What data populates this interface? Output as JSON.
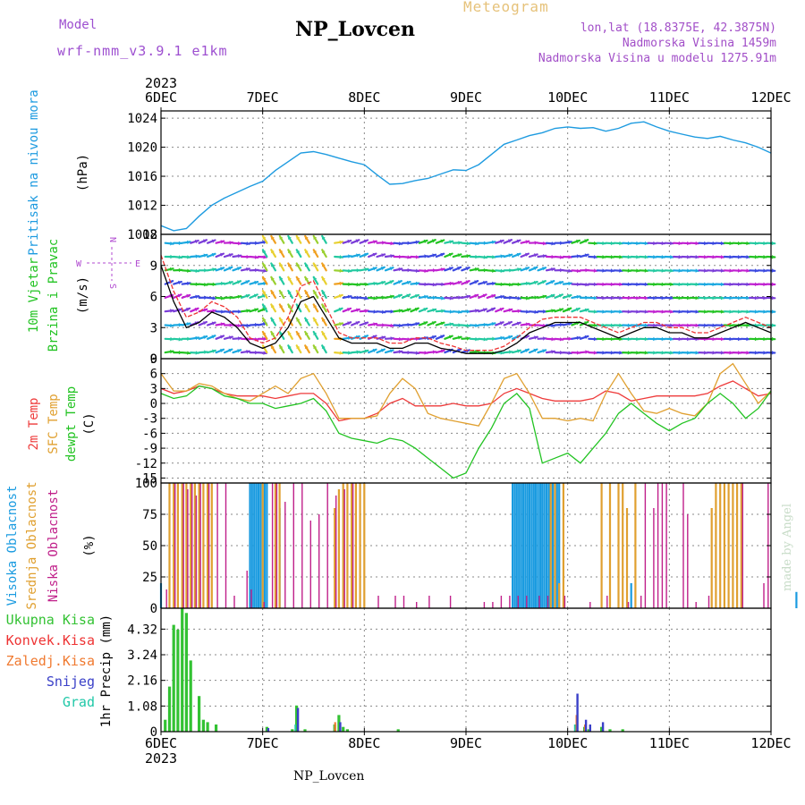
{
  "header": {
    "model_label": "Model",
    "model_value": "wrf-nmm_v3.9.1 e1km",
    "title": "NP_Lovcen",
    "meteogram": "Meteogram",
    "lonlat": "lon,lat (18.8375E, 42.3875N)",
    "altitude": "Nadmorska Visina 1459m",
    "altitude_model": "Nadmorska Visina u modelu 1275.91m"
  },
  "footer": {
    "station": "NP_Lovcen"
  },
  "watermark": "made by Angel",
  "colors": {
    "pressure": "#1e9be0",
    "temp2m": "#ee3b3b",
    "sfc": "#e0a030",
    "dew": "#22c322",
    "visoka": "#1a9be0",
    "srednja": "#e0a030",
    "niska": "#c0208a",
    "rain_total": "#33c233",
    "rain_conv": "#ee3333",
    "rain_frz": "#f07a30",
    "snow": "#3a40c8",
    "graupel": "#20c8a8",
    "wind_speed": "#000000",
    "wind_gust": "#ee3333"
  },
  "chart_data": [
    {
      "type": "line",
      "id": "pressure",
      "ylabel_lines": [
        "Pritisak na nivou mora",
        "(hPa)"
      ],
      "ylim": [
        1008,
        1025
      ],
      "yticks": [
        1008,
        1012,
        1016,
        1020,
        1024
      ],
      "x": [
        0,
        3,
        6,
        9,
        12,
        15,
        18,
        21,
        24,
        27,
        30,
        33,
        36,
        39,
        42,
        45,
        48,
        51,
        54,
        57,
        60,
        63,
        66,
        69,
        72,
        75,
        78,
        81,
        84,
        87,
        90,
        93,
        96,
        99,
        102,
        105,
        108,
        111,
        114,
        117,
        120,
        123,
        126,
        129,
        132,
        135,
        138,
        141,
        144
      ],
      "values": [
        1009.2,
        1008.5,
        1008.8,
        1010.5,
        1012.0,
        1013.0,
        1013.8,
        1014.6,
        1015.3,
        1016.8,
        1018.0,
        1019.2,
        1019.4,
        1019.0,
        1018.5,
        1018.0,
        1017.6,
        1016.2,
        1014.9,
        1015.0,
        1015.4,
        1015.7,
        1016.3,
        1016.9,
        1016.8,
        1017.6,
        1019.0,
        1020.4,
        1021.0,
        1021.6,
        1022.0,
        1022.6,
        1022.8,
        1022.6,
        1022.7,
        1022.2,
        1022.6,
        1023.3,
        1023.5,
        1022.8,
        1022.2,
        1021.8,
        1021.4,
        1021.2,
        1021.5,
        1021.0,
        1020.6,
        1020.0,
        1019.2
      ]
    },
    {
      "type": "line",
      "id": "wind",
      "ylabel_lines": [
        "10m Vjetar",
        "Brzina i Pravac",
        "(m/s)"
      ],
      "compass": {
        "n": "N",
        "s": "S",
        "e": "E",
        "w": "W"
      },
      "ylim": [
        0,
        12
      ],
      "yticks": [
        0,
        3,
        6,
        9,
        12
      ],
      "x": [
        0,
        3,
        6,
        9,
        12,
        15,
        18,
        21,
        24,
        27,
        30,
        33,
        36,
        39,
        42,
        45,
        48,
        51,
        54,
        57,
        60,
        63,
        66,
        69,
        72,
        75,
        78,
        81,
        84,
        87,
        90,
        93,
        96,
        99,
        102,
        105,
        108,
        111,
        114,
        117,
        120,
        123,
        126,
        129,
        132,
        135,
        138,
        141,
        144
      ],
      "series": [
        {
          "name": "speed",
          "values": [
            9.0,
            5.5,
            3.0,
            3.5,
            4.5,
            4.0,
            3.0,
            1.5,
            1.0,
            1.5,
            3.0,
            5.5,
            6.0,
            4.0,
            2.0,
            1.5,
            1.5,
            1.5,
            1.0,
            1.0,
            1.5,
            1.5,
            1.0,
            0.8,
            0.5,
            0.5,
            0.5,
            0.8,
            1.5,
            2.5,
            3.0,
            3.5,
            3.5,
            3.5,
            3.0,
            2.5,
            2.0,
            2.5,
            3.0,
            3.0,
            2.5,
            2.5,
            2.0,
            2.0,
            2.5,
            3.0,
            3.5,
            3.0,
            2.5
          ]
        },
        {
          "name": "gust",
          "values": [
            10.0,
            6.5,
            4.0,
            4.5,
            5.5,
            5.0,
            4.0,
            2.0,
            1.5,
            2.0,
            4.0,
            7.0,
            7.5,
            5.0,
            2.5,
            2.0,
            2.0,
            2.0,
            1.5,
            1.5,
            2.0,
            2.0,
            1.5,
            1.2,
            0.8,
            0.8,
            0.8,
            1.2,
            2.0,
            3.0,
            3.8,
            4.0,
            4.0,
            4.0,
            3.5,
            3.0,
            2.5,
            3.0,
            3.5,
            3.5,
            3.0,
            3.0,
            2.5,
            2.5,
            3.0,
            3.5,
            4.0,
            3.5,
            3.0
          ]
        }
      ]
    },
    {
      "type": "line",
      "id": "temperature",
      "ylabel_lines": [
        "2m Temp",
        "SFC Temp",
        "dewpt Temp",
        "(C)"
      ],
      "ylim": [
        -16,
        9
      ],
      "yticks": [
        -15,
        -12,
        -9,
        -6,
        -3,
        0,
        3,
        6,
        9
      ],
      "x": [
        0,
        3,
        6,
        9,
        12,
        15,
        18,
        21,
        24,
        27,
        30,
        33,
        36,
        39,
        42,
        45,
        48,
        51,
        54,
        57,
        60,
        63,
        66,
        69,
        72,
        75,
        78,
        81,
        84,
        87,
        90,
        93,
        96,
        99,
        102,
        105,
        108,
        111,
        114,
        117,
        120,
        123,
        126,
        129,
        132,
        135,
        138,
        141,
        144
      ],
      "series": [
        {
          "name": "2m Temp",
          "values": [
            3.0,
            2.0,
            2.5,
            3.5,
            3.0,
            2.0,
            1.5,
            1.5,
            1.5,
            1.0,
            1.5,
            2.0,
            2.0,
            0.0,
            -3.5,
            -3.0,
            -3.0,
            -2.0,
            0.0,
            1.0,
            -0.5,
            -0.5,
            -0.5,
            0.0,
            -0.5,
            -0.5,
            0.0,
            2.0,
            3.0,
            2.0,
            1.0,
            0.5,
            0.5,
            0.5,
            1.0,
            2.5,
            2.0,
            0.5,
            1.0,
            1.5,
            1.5,
            1.5,
            1.5,
            2.0,
            3.5,
            4.5,
            3.0,
            1.5,
            2.0
          ]
        },
        {
          "name": "SFC Temp",
          "values": [
            6.0,
            2.5,
            2.5,
            4.0,
            3.5,
            2.0,
            1.0,
            0.5,
            2.0,
            3.5,
            2.0,
            5.0,
            6.0,
            2.0,
            -3.0,
            -3.0,
            -3.0,
            -2.5,
            2.0,
            5.0,
            3.0,
            -2.0,
            -3.0,
            -3.5,
            -4.0,
            -4.5,
            0.0,
            5.0,
            6.0,
            2.0,
            -3.0,
            -3.0,
            -3.5,
            -3.0,
            -3.5,
            2.0,
            6.0,
            2.0,
            -1.5,
            -2.0,
            -1.0,
            -2.0,
            -2.5,
            0.0,
            6.0,
            8.0,
            4.0,
            0.0,
            2.5
          ]
        },
        {
          "name": "dewpt Temp",
          "values": [
            2.0,
            1.0,
            1.5,
            3.5,
            3.0,
            1.5,
            1.0,
            0.0,
            0.0,
            -1.0,
            -0.5,
            0.0,
            1.0,
            -1.5,
            -6.0,
            -7.0,
            -7.5,
            -8.0,
            -7.0,
            -7.5,
            -9.0,
            -11.0,
            -13.0,
            -15.0,
            -14.0,
            -9.0,
            -5.0,
            0.0,
            2.0,
            -1.0,
            -12.0,
            -11.0,
            -10.0,
            -12.0,
            -9.0,
            -6.0,
            -2.0,
            0.0,
            -2.0,
            -4.0,
            -5.5,
            -4.0,
            -3.0,
            0.0,
            2.0,
            0.0,
            -3.0,
            -1.0,
            2.5
          ]
        }
      ]
    },
    {
      "type": "bar",
      "id": "cloud",
      "ylabel_lines": [
        "Visoka Oblacnost",
        "Srednja Oblacnost",
        "Niska Oblacnost",
        "(%)"
      ],
      "ylim": [
        0,
        100
      ],
      "yticks": [
        0,
        25,
        50,
        75,
        100
      ],
      "series": [
        {
          "name": "Visoka Oblacnost",
          "x": [
            0,
            21,
            21.5,
            22,
            22.5,
            23,
            23.5,
            24,
            24.5,
            25,
            28,
            83,
            83.5,
            84,
            84.5,
            85,
            85.5,
            86,
            86.5,
            87,
            87.5,
            88,
            88.5,
            89,
            89.5,
            90,
            90.5,
            91,
            91.5,
            92,
            92.5,
            93,
            93.5,
            94,
            111,
            150
          ],
          "values": [
            20,
            100,
            100,
            100,
            100,
            100,
            100,
            100,
            100,
            100,
            80,
            100,
            100,
            100,
            100,
            100,
            100,
            100,
            100,
            100,
            100,
            100,
            100,
            100,
            100,
            100,
            100,
            100,
            100,
            100,
            100,
            100,
            100,
            100,
            20,
            13
          ]
        },
        {
          "name": "Srednja Oblacnost",
          "x": [
            2,
            3,
            4,
            5,
            6,
            7,
            8,
            9,
            10,
            11,
            12,
            24,
            27,
            28,
            41,
            42,
            43,
            44,
            45,
            46,
            47,
            48,
            92,
            93,
            94,
            95,
            104,
            106,
            108,
            109,
            110,
            112,
            130,
            131,
            132,
            133,
            134,
            135,
            136,
            137
          ],
          "values": [
            100,
            100,
            100,
            100,
            100,
            100,
            100,
            100,
            100,
            100,
            100,
            100,
            100,
            100,
            80,
            95,
            100,
            100,
            100,
            100,
            100,
            100,
            100,
            100,
            20,
            100,
            100,
            100,
            100,
            100,
            80,
            100,
            80,
            100,
            100,
            100,
            100,
            100,
            100,
            100
          ]
        },
        {
          "name": "Niska Oblacnost",
          "x": [
            1,
            3,
            5,
            6,
            7,
            8,
            9,
            11,
            13,
            15,
            17,
            20,
            21,
            24,
            26,
            27,
            29,
            31,
            33,
            35,
            37,
            39,
            41,
            43,
            45,
            51,
            55,
            57,
            60,
            63,
            68,
            76,
            78,
            80,
            82,
            84,
            86,
            89,
            91,
            95,
            101,
            105,
            110,
            113,
            114,
            116,
            117,
            118,
            119,
            123,
            124,
            126,
            129,
            137,
            142,
            143
          ],
          "values": [
            15,
            100,
            100,
            95,
            100,
            90,
            100,
            100,
            100,
            100,
            10,
            30,
            15,
            5,
            100,
            100,
            85,
            100,
            100,
            70,
            75,
            100,
            90,
            95,
            100,
            10,
            10,
            10,
            5,
            10,
            10,
            5,
            5,
            10,
            10,
            10,
            10,
            10,
            10,
            10,
            5,
            10,
            5,
            10,
            100,
            80,
            100,
            100,
            100,
            100,
            75,
            5,
            10,
            100,
            20,
            100
          ]
        }
      ]
    },
    {
      "type": "bar",
      "id": "precip",
      "ylabel_lines": [
        "1hr Precip (mm)"
      ],
      "legend": [
        "Ukupna Kisa",
        "Konvek.Kisa",
        "Zaledj.Kisa",
        "Snijeg",
        "Grad"
      ],
      "ylim": [
        0,
        5.2
      ],
      "yticks": [
        0,
        1.08,
        2.16,
        3.24,
        4.32
      ],
      "x": [
        1,
        2,
        3,
        4,
        5,
        6,
        7,
        9,
        10,
        11,
        13,
        25,
        31,
        32,
        34,
        41,
        42,
        43,
        44,
        56,
        98,
        100,
        101,
        104,
        106,
        109
      ],
      "series": [
        {
          "name": "Ukupna Kisa",
          "values": [
            0.5,
            1.9,
            4.5,
            4.3,
            5.2,
            5.0,
            3.0,
            1.5,
            0.5,
            0.4,
            0.3,
            0.2,
            0.1,
            1.1,
            0.1,
            0.3,
            0.7,
            0.2,
            0.1,
            0.1,
            0.3,
            0.2,
            0.1,
            0.2,
            0.1,
            0.1
          ]
        },
        {
          "name": "Konvek.Kisa",
          "values": [
            0,
            0,
            0,
            0,
            0,
            0,
            0,
            0,
            0,
            0,
            0,
            0,
            0,
            0,
            0,
            0,
            0.2,
            0,
            0,
            0,
            0,
            0,
            0,
            0,
            0,
            0
          ]
        },
        {
          "name": "Zaledj.Kisa",
          "values": [
            0,
            0,
            0,
            0,
            0,
            0,
            0,
            0,
            0,
            0,
            0,
            0,
            0,
            0,
            0,
            0.4,
            0,
            0,
            0,
            0,
            0.7,
            0.3,
            0,
            0,
            0,
            0
          ]
        },
        {
          "name": "Snijeg",
          "values": [
            0,
            0,
            0,
            0,
            0,
            0,
            0,
            0,
            0,
            0,
            0,
            0.15,
            0,
            1.0,
            0,
            0,
            0.4,
            0,
            0,
            0,
            1.6,
            0.5,
            0.3,
            0.4,
            0,
            0
          ]
        },
        {
          "name": "Grad",
          "values": [
            0,
            0,
            0,
            0,
            0,
            0,
            0,
            0,
            0,
            0,
            0,
            0,
            0,
            0.3,
            0,
            0,
            0,
            0,
            0,
            0,
            0.3,
            0,
            0,
            0,
            0,
            0
          ]
        }
      ]
    }
  ],
  "time_axis": {
    "year": "2023",
    "ticks": [
      "6DEC",
      "7DEC",
      "8DEC",
      "9DEC",
      "10DEC",
      "11DEC",
      "12DEC"
    ],
    "range_hours": [
      0,
      144
    ]
  }
}
